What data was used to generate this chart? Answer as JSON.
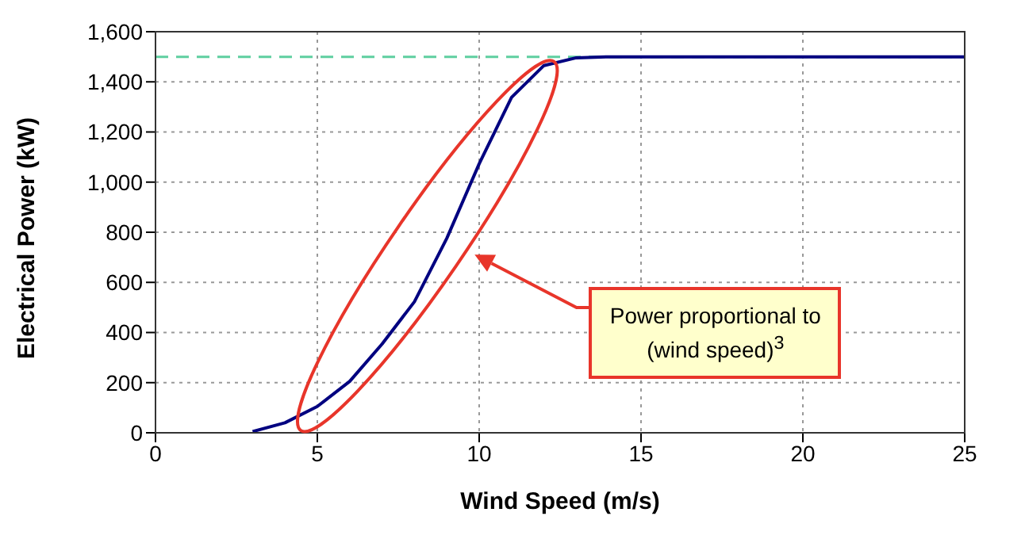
{
  "chart_data": {
    "type": "line",
    "xlabel": "Wind Speed (m/s)",
    "ylabel": "Electrical Power (kW)",
    "x": [
      3,
      4,
      5,
      6,
      7,
      8,
      9,
      10,
      11,
      12,
      13,
      14,
      15,
      16,
      17,
      18,
      19,
      20,
      21,
      22,
      23,
      24,
      25
    ],
    "series": [
      {
        "color": "#000080",
        "values": [
          5,
          40,
          105,
          205,
          354,
          523,
          776,
          1073,
          1338,
          1465,
          1496,
          1500,
          1500,
          1500,
          1500,
          1500,
          1500,
          1500,
          1500,
          1500,
          1500,
          1500,
          1500
        ]
      }
    ],
    "xlim": [
      0,
      25
    ],
    "xticks": [
      0,
      5,
      10,
      15,
      20,
      25
    ],
    "ylim": [
      0,
      1600
    ],
    "yticks": [
      {
        "value": 0,
        "label": "0"
      },
      {
        "value": 200,
        "label": "200"
      },
      {
        "value": 400,
        "label": "400"
      },
      {
        "value": 600,
        "label": "600"
      },
      {
        "value": 800,
        "label": "800"
      },
      {
        "value": 1000,
        "label": "1,000"
      },
      {
        "value": 1200,
        "label": "1,200"
      },
      {
        "value": 1400,
        "label": "1,400"
      },
      {
        "value": 1600,
        "label": "1,600"
      }
    ],
    "grid": true,
    "marker": "none",
    "line_style": "solid",
    "ref_lines": [
      {
        "axis": "y",
        "value": 1500,
        "color": "#5fcfa0",
        "line_style": "dashed"
      }
    ],
    "annotations": [
      "Power proportional to (wind speed)$^{3}$"
    ]
  }
}
